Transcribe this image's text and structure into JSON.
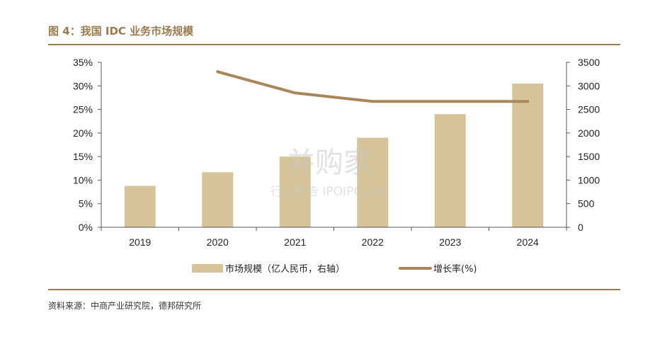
{
  "header": {
    "title": "图 4：我国 IDC 业务市场规模"
  },
  "source": {
    "text": "资料来源：中商产业研究院，德邦研究所"
  },
  "watermark": {
    "line1": "并购家",
    "line2": "行业报告 IPOIPO.CN"
  },
  "chart_data": {
    "type": "bar",
    "categories": [
      "2019",
      "2020",
      "2021",
      "2022",
      "2023",
      "2024"
    ],
    "series": [
      {
        "name": "市场规模（亿人民币，右轴）",
        "type": "bar",
        "axis": "right",
        "values": [
          878,
          1167,
          1500,
          1900,
          2400,
          3050
        ],
        "color": "#d6c39a"
      },
      {
        "name": "增长率(%)",
        "type": "line",
        "axis": "left",
        "values": [
          null,
          33,
          28.5,
          26.7,
          26.7,
          26.7
        ],
        "color": "#a8865a"
      }
    ],
    "y_left": {
      "min": 0,
      "max": 35,
      "step": 5,
      "tick_labels": [
        "0%",
        "5%",
        "10%",
        "15%",
        "20%",
        "25%",
        "30%",
        "35%"
      ]
    },
    "y_right": {
      "min": 0,
      "max": 3500,
      "step": 500,
      "tick_labels": [
        "0",
        "500",
        "1000",
        "1500",
        "2000",
        "2500",
        "3000",
        "3500"
      ]
    },
    "grid": false,
    "legend": "bottom"
  }
}
